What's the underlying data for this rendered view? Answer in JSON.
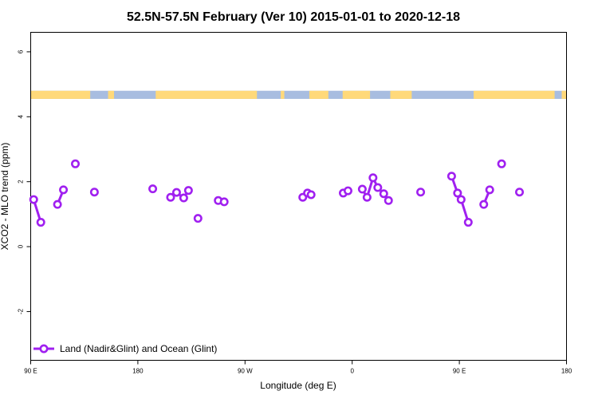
{
  "chart_data": {
    "type": "line",
    "title": "52.5N-57.5N February (Ver 10)   2015-01-01 to 2020-12-18",
    "xlabel": "Longitude (deg E)",
    "ylabel": "XCO2 - MLO trend (ppm)",
    "xlim": [
      90,
      540
    ],
    "ylim": [
      -3.5,
      6.6
    ],
    "x_ticks": [
      {
        "value": 90,
        "label": "90 E"
      },
      {
        "value": 180,
        "label": "180"
      },
      {
        "value": 270,
        "label": "90 W"
      },
      {
        "value": 360,
        "label": "0"
      },
      {
        "value": 450,
        "label": "90 E"
      },
      {
        "value": 540,
        "label": "180"
      }
    ],
    "y_ticks": [
      {
        "value": -2,
        "label": "-2"
      },
      {
        "value": 0,
        "label": "0"
      },
      {
        "value": 2,
        "label": "2"
      },
      {
        "value": 4,
        "label": "4"
      },
      {
        "value": 6,
        "label": "6"
      }
    ],
    "grid": false,
    "legend_position": "bottom-left",
    "land_ocean_strip": {
      "y_range": [
        4.55,
        4.8
      ],
      "land_color": "#ffd97a",
      "ocean_color": "#a8bde0",
      "land_x_ranges": [
        [
          90,
          140
        ],
        [
          155,
          160
        ],
        [
          195,
          280
        ],
        [
          300,
          303
        ],
        [
          324,
          340
        ],
        [
          352,
          375
        ],
        [
          392,
          410
        ],
        [
          462,
          530
        ],
        [
          536,
          540
        ]
      ]
    },
    "series": [
      {
        "name": "Land (Nadir&Glint) and Ocean (Glint)",
        "color": "#a020f0",
        "segments": [
          [
            [
              92.5,
              1.45
            ],
            [
              98.5,
              0.75
            ]
          ],
          [
            [
              112.5,
              1.3
            ],
            [
              117.5,
              1.75
            ]
          ],
          [
            [
              127.5,
              2.55
            ]
          ],
          [
            [
              143.5,
              1.68
            ]
          ],
          [
            [
              192.5,
              1.78
            ]
          ],
          [
            [
              207.5,
              1.52
            ],
            [
              212.5,
              1.67
            ],
            [
              218.5,
              1.5
            ],
            [
              222.5,
              1.73
            ]
          ],
          [
            [
              230.5,
              0.87
            ]
          ],
          [
            [
              247.5,
              1.42
            ],
            [
              252.5,
              1.38
            ]
          ],
          [
            [
              318.5,
              1.52
            ],
            [
              322.5,
              1.65
            ],
            [
              325.5,
              1.6
            ]
          ],
          [
            [
              352.5,
              1.65
            ],
            [
              356.5,
              1.72
            ]
          ],
          [
            [
              368.5,
              1.77
            ],
            [
              372.5,
              1.52
            ],
            [
              377.5,
              2.12
            ],
            [
              381.5,
              1.82
            ],
            [
              386.5,
              1.63
            ],
            [
              390.5,
              1.42
            ]
          ],
          [
            [
              417.5,
              1.68
            ]
          ],
          [
            [
              443.5,
              2.17
            ],
            [
              448.5,
              1.65
            ],
            [
              451.5,
              1.45
            ],
            [
              457.5,
              0.75
            ]
          ],
          [
            [
              470.5,
              1.3
            ],
            [
              475.5,
              1.75
            ]
          ],
          [
            [
              485.5,
              2.55
            ]
          ],
          [
            [
              500.5,
              1.68
            ]
          ]
        ]
      }
    ]
  }
}
